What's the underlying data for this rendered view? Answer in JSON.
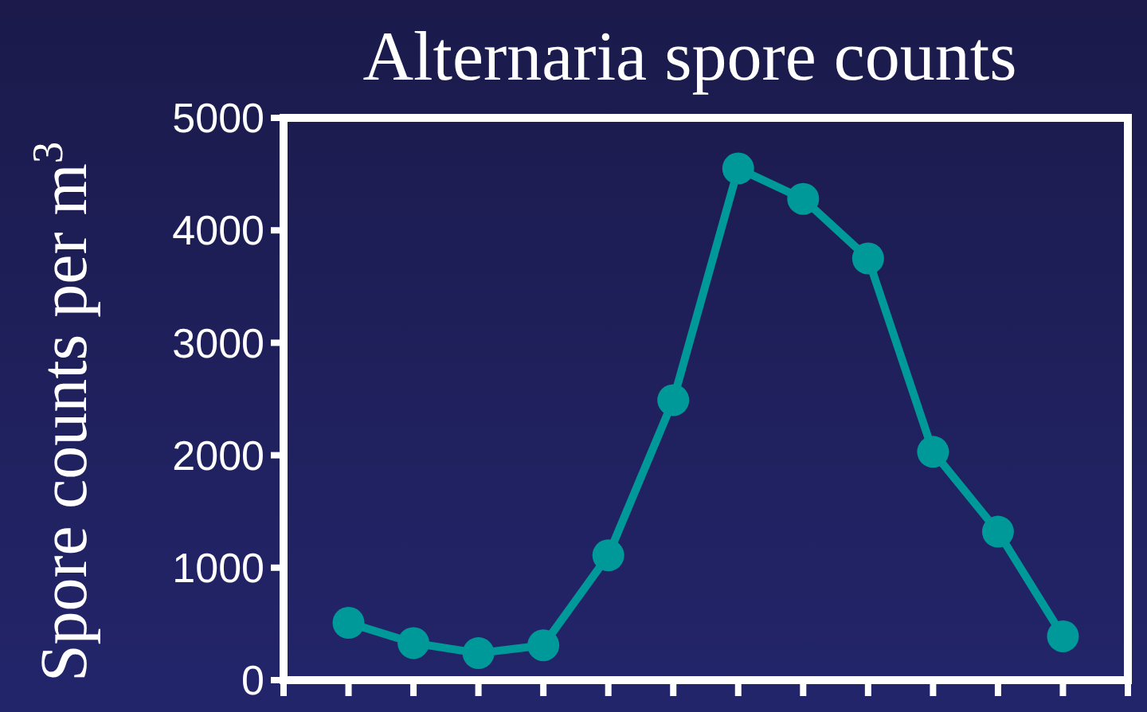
{
  "chart_data": {
    "type": "line",
    "title": "Alternaria spore counts",
    "ylabel": "Spore counts per m$^{3}$",
    "categories": [
      null,
      null,
      null,
      null,
      null,
      null,
      null,
      null,
      null,
      null,
      null,
      null
    ],
    "series": [
      {
        "color": "#009999",
        "values": [
          510,
          330,
          240,
          310,
          1110,
          2490,
          4550,
          4280,
          3750,
          2030,
          1320,
          390
        ]
      }
    ],
    "ylim": [
      0,
      5000
    ],
    "yticks": [
      0,
      1000,
      2000,
      3000,
      4000,
      5000
    ],
    "marker": "circle",
    "grid": false,
    "tick_labels": "y"
  }
}
